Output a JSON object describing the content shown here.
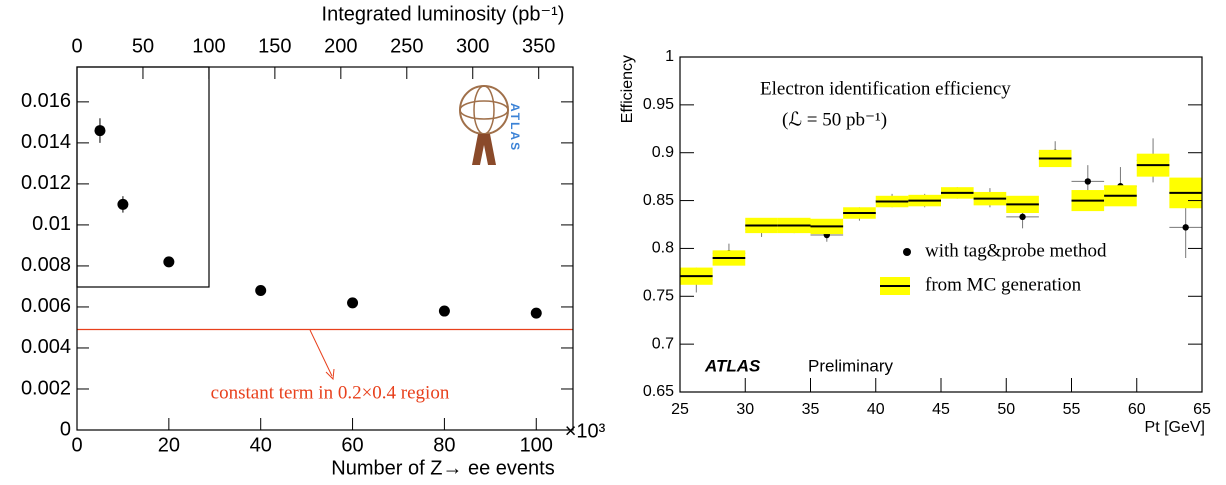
{
  "chart_data": [
    {
      "type": "scatter",
      "x_label": "Number of Z→ ee events",
      "x_multiplier": "×10³",
      "x2_label": "Integrated luminosity (pb⁻¹)",
      "x": [
        5,
        10,
        20,
        40,
        60,
        80,
        100
      ],
      "values": [
        0.0146,
        0.011,
        0.0082,
        0.0068,
        0.0062,
        0.0058,
        0.0057
      ],
      "errors": [
        0.0006,
        0.0004,
        0.0001,
        0.0001,
        0.0001,
        0.0001,
        0.0001
      ],
      "color": "#000000",
      "xlim": [
        0,
        108
      ],
      "xticks": [
        0,
        20,
        40,
        60,
        80,
        100
      ],
      "x2lim": [
        0,
        376
      ],
      "x2ticks": [
        0,
        50,
        100,
        150,
        200,
        250,
        300,
        350
      ],
      "ylim": [
        0,
        0.0177
      ],
      "yticks": [
        0,
        0.002,
        0.004,
        0.006,
        0.008,
        0.01,
        0.012,
        0.014,
        0.016
      ],
      "reference_line": {
        "value": 0.0049,
        "color": "#e8401c",
        "label": "constant term in 0.2×0.4 region"
      },
      "logo_text": "ATLAS"
    },
    {
      "type": "histogram",
      "x_label": "Pt [GeV]",
      "y_label": "Efficiency",
      "annotations": [
        "Electron identification efficiency",
        "(ℒ = 50 pb⁻¹)"
      ],
      "experiment": "ATLAS",
      "status": "Preliminary",
      "bins": [
        25,
        27.5,
        30,
        32.5,
        35,
        37.5,
        40,
        42.5,
        45,
        47.5,
        50,
        52.5,
        55,
        57.5,
        60,
        62.5,
        65
      ],
      "series": [
        {
          "name": "with tag&probe method",
          "style": "points",
          "color": "#000000",
          "values": [
            0.767,
            0.795,
            0.82,
            0.823,
            0.814,
            0.836,
            0.85,
            0.85,
            0.858,
            0.853,
            0.833,
            0.9,
            0.87,
            0.865,
            0.892,
            0.822
          ],
          "errors": [
            0.013,
            0.01,
            0.008,
            0.007,
            0.007,
            0.007,
            0.007,
            0.007,
            0.006,
            0.01,
            0.012,
            0.012,
            0.017,
            0.02,
            0.023,
            0.032
          ]
        },
        {
          "name": "from MC generation",
          "style": "band",
          "color": "#ffff00",
          "values": [
            0.771,
            0.79,
            0.824,
            0.824,
            0.823,
            0.837,
            0.849,
            0.85,
            0.858,
            0.852,
            0.846,
            0.894,
            0.85,
            0.855,
            0.887,
            0.858
          ],
          "errors": [
            0.009,
            0.008,
            0.008,
            0.008,
            0.008,
            0.006,
            0.006,
            0.006,
            0.006,
            0.007,
            0.009,
            0.009,
            0.011,
            0.011,
            0.012,
            0.016
          ]
        }
      ],
      "xlim": [
        25,
        65
      ],
      "xticks": [
        25,
        30,
        35,
        40,
        45,
        50,
        55,
        60,
        65
      ],
      "ylim": [
        0.65,
        1
      ],
      "yticks": [
        0.65,
        0.7,
        0.75,
        0.8,
        0.85,
        0.9,
        0.95,
        1
      ],
      "legend": "right"
    }
  ]
}
